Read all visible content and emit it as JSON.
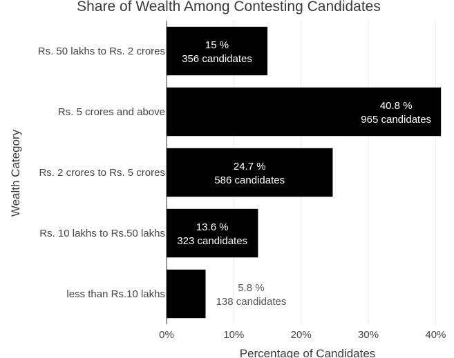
{
  "chart_data": {
    "type": "bar",
    "orientation": "horizontal",
    "title": "Share of Wealth Among Contesting Candidates",
    "xlabel": "Percentage of Candidates",
    "ylabel": "Wealth Category",
    "xlim": [
      0,
      41.5
    ],
    "x_ticks": [
      "0%",
      "10%",
      "20%",
      "30%",
      "40%"
    ],
    "x_tick_values": [
      0,
      10,
      20,
      30,
      40
    ],
    "grid": true,
    "bar_color": "#000000",
    "categories": [
      "Rs. 50 lakhs to Rs. 2 crores",
      "Rs. 5 crores and above",
      "Rs. 2 crores to Rs. 5 crores",
      "Rs. 10 lakhs to Rs.50 lakhs",
      "less than Rs.10 lakhs"
    ],
    "values": [
      15,
      40.8,
      24.7,
      13.6,
      5.8
    ],
    "counts": [
      356,
      965,
      586,
      323,
      138
    ],
    "value_labels": [
      "15 %",
      "40.8 %",
      "24.7 %",
      "13.6 %",
      "5.8 %"
    ],
    "count_labels": [
      "356 candidates",
      "965 candidates",
      "586 candidates",
      "323 candidates",
      "138 candidates"
    ]
  }
}
